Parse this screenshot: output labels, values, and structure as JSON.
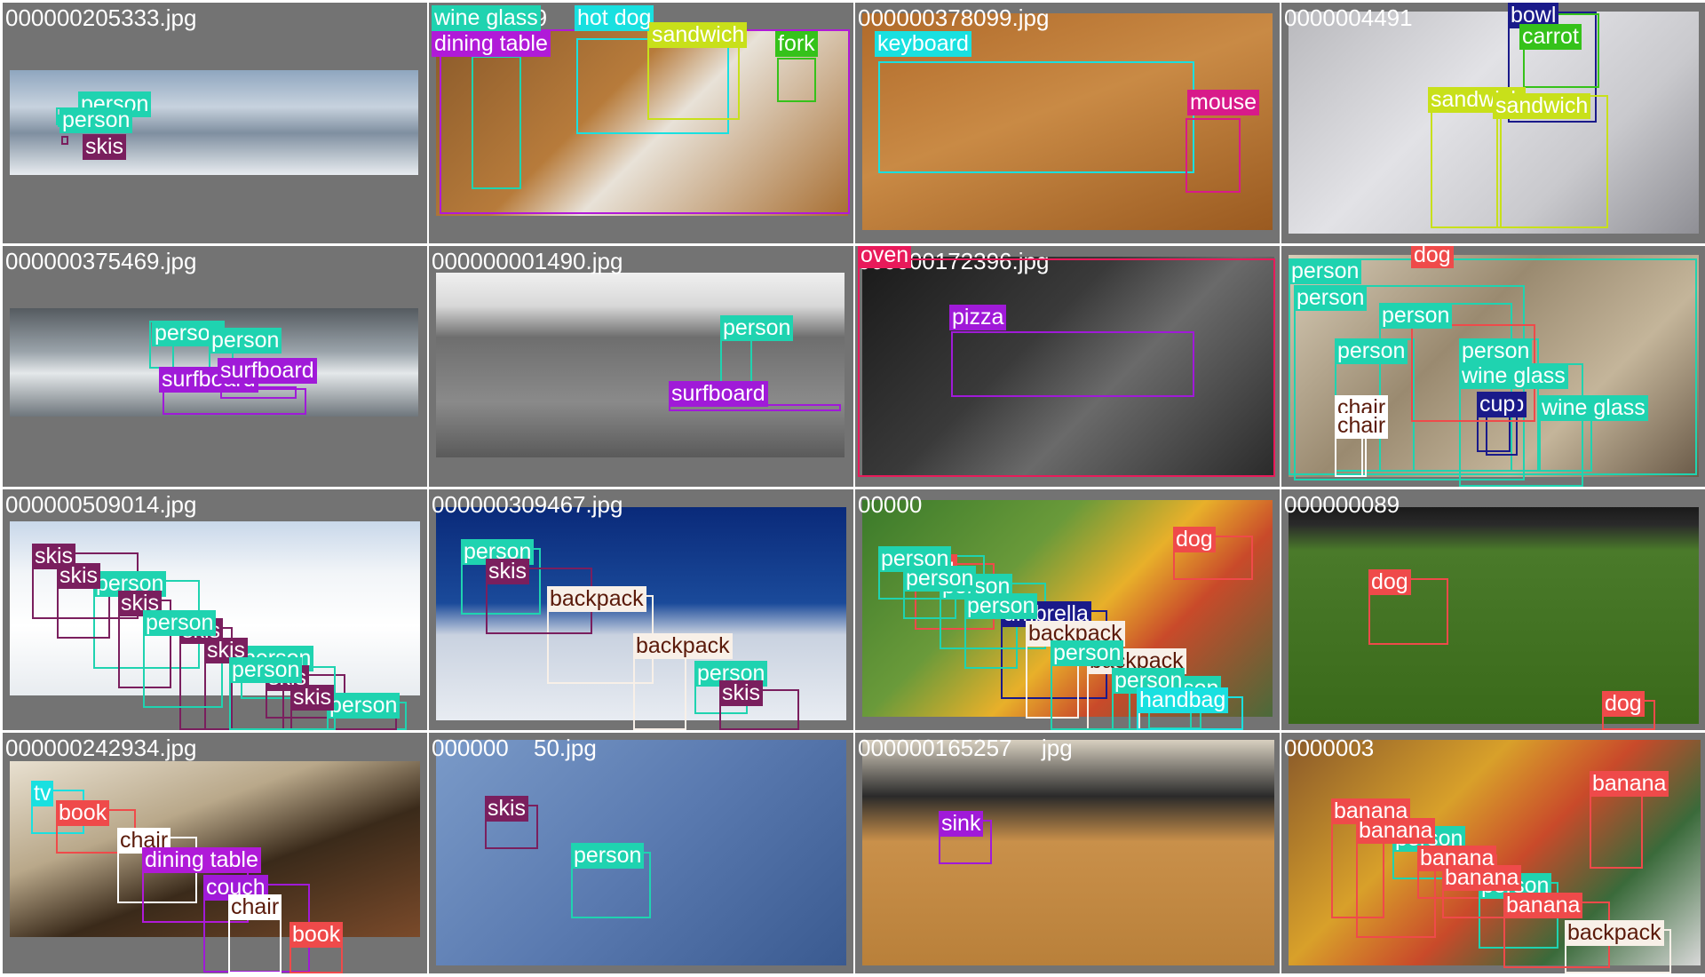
{
  "tiles": [
    {
      "filename": "000000205333.jpg",
      "photo_fill": "linear-gradient(180deg,#8fa6bf 0%,#c7d2de 35%,#7f8fa0 60%,#e8ecf0 100%)",
      "detections": [
        {
          "label": "person",
          "color": "#1fd3b0",
          "text_color": "#ffffff"
        },
        {
          "label": "person",
          "color": "#1fd3b0",
          "text_color": "#ffffff"
        },
        {
          "label": "skis",
          "color": "#7a1f5e",
          "text_color": "#ffffff"
        }
      ]
    },
    {
      "filename": "000000229",
      "photo_fill": "linear-gradient(135deg,#8a5a2a 0%,#b77b3b 40%,#e8e2d8 55%,#a86f33 100%)",
      "detections": [
        {
          "label": "wine glass",
          "color": "#1fd3b0",
          "text_color": "#ffffff"
        },
        {
          "label": "hot dog",
          "color": "#19e0e0",
          "text_color": "#ffffff"
        },
        {
          "label": "sandwich",
          "color": "#c8e01a",
          "text_color": "#ffffff"
        },
        {
          "label": "dining table",
          "color": "#b01ad8",
          "text_color": "#ffffff"
        },
        {
          "label": "fork",
          "color": "#35c21a",
          "text_color": "#ffffff"
        }
      ]
    },
    {
      "filename": "000000378099.jpg",
      "photo_fill": "linear-gradient(160deg,#b06a2a 0%,#c98a45 45%,#9a5a20 100%)",
      "detections": [
        {
          "label": "keyboard",
          "color": "#19e0e0",
          "text_color": "#ffffff"
        },
        {
          "label": "mouse",
          "color": "#d81a8a",
          "text_color": "#ffffff"
        }
      ]
    },
    {
      "filename": "0000004491",
      "photo_fill": "linear-gradient(135deg,#b9b9bd 0%,#e2e2e6 40%,#c9c9cd 70%,#8f8f95 100%)",
      "detections": [
        {
          "label": "bowl",
          "color": "#1a1a8a",
          "text_color": "#ffffff"
        },
        {
          "label": "carrot",
          "color": "#35c21a",
          "text_color": "#ffffff"
        },
        {
          "label": "sandwich",
          "color": "#c8e01a",
          "text_color": "#ffffff"
        },
        {
          "label": "sandwich",
          "color": "#c8e01a",
          "text_color": "#ffffff"
        }
      ]
    },
    {
      "filename": "000000375469.jpg",
      "photo_fill": "linear-gradient(180deg,#555b60 0%,#9aa3aa 40%,#e4e8ea 60%,#6e767c 100%)",
      "detections": [
        {
          "label": "person",
          "color": "#1fd3b0",
          "text_color": "#ffffff"
        },
        {
          "label": "person",
          "color": "#1fd3b0",
          "text_color": "#ffffff"
        },
        {
          "label": "surfboard",
          "color": "#a01ad8",
          "text_color": "#ffffff"
        },
        {
          "label": "surfboard",
          "color": "#a01ad8",
          "text_color": "#ffffff"
        }
      ]
    },
    {
      "filename": "000000001490.jpg",
      "photo_fill": "linear-gradient(180deg,#f0f0f0 0%,#d8d8d8 18%,#6e6e6e 35%,#8a8a8a 70%,#5a5a5a 100%)",
      "detections": [
        {
          "label": "person",
          "color": "#1fd3b0",
          "text_color": "#ffffff"
        },
        {
          "label": "surfboard",
          "color": "#a01ad8",
          "text_color": "#ffffff"
        }
      ]
    },
    {
      "filename": "000000172396.jpg",
      "photo_fill": "linear-gradient(135deg,#1a1a1a 0%,#3a3a3a 40%,#6a6a6a 60%,#2a2a2a 100%)",
      "detections": [
        {
          "label": "oven",
          "color": "#e81a5a",
          "text_color": "#ffffff"
        },
        {
          "label": "pizza",
          "color": "#a01ad8",
          "text_color": "#ffffff"
        }
      ]
    },
    {
      "filename": "",
      "photo_fill": "linear-gradient(135deg,#d8cdb8 0%,#9a8a70 40%,#c4b59a 70%,#6a5a48 100%)",
      "detections": [
        {
          "label": "person",
          "color": "#1fd3b0",
          "text_color": "#ffffff"
        },
        {
          "label": "person",
          "color": "#1fd3b0",
          "text_color": "#ffffff"
        },
        {
          "label": "person",
          "color": "#1fd3b0",
          "text_color": "#ffffff"
        },
        {
          "label": "person",
          "color": "#1fd3b0",
          "text_color": "#ffffff"
        },
        {
          "label": "person",
          "color": "#1fd3b0",
          "text_color": "#ffffff"
        },
        {
          "label": "wine glass",
          "color": "#1fd3b0",
          "text_color": "#ffffff"
        },
        {
          "label": "chair",
          "color": "#ffffff",
          "text_color": "#5a1a0a"
        },
        {
          "label": "chair",
          "color": "#ffffff",
          "text_color": "#5a1a0a"
        },
        {
          "label": "cup",
          "color": "#1a1a8a",
          "text_color": "#ffffff"
        },
        {
          "label": "cup",
          "color": "#1a1a8a",
          "text_color": "#ffffff"
        },
        {
          "label": "wine glass",
          "color": "#1fd3b0",
          "text_color": "#ffffff"
        },
        {
          "label": "dog",
          "color": "#ef4a4a",
          "text_color": "#ffffff"
        }
      ]
    },
    {
      "filename": "000000509014.jpg",
      "photo_fill": "linear-gradient(180deg,#c9d8ea 0%,#f2f5f8 30%,#ffffff 60%,#e8ecf0 100%)",
      "detections": [
        {
          "label": "person",
          "color": "#1fd3b0",
          "text_color": "#ffffff"
        },
        {
          "label": "person",
          "color": "#1fd3b0",
          "text_color": "#ffffff"
        },
        {
          "label": "person",
          "color": "#1fd3b0",
          "text_color": "#ffffff"
        },
        {
          "label": "skis",
          "color": "#7a1f5e",
          "text_color": "#ffffff"
        },
        {
          "label": "skis",
          "color": "#7a1f5e",
          "text_color": "#ffffff"
        },
        {
          "label": "skis",
          "color": "#7a1f5e",
          "text_color": "#ffffff"
        },
        {
          "label": "skis",
          "color": "#7a1f5e",
          "text_color": "#ffffff"
        },
        {
          "label": "skis",
          "color": "#7a1f5e",
          "text_color": "#ffffff"
        },
        {
          "label": "skis",
          "color": "#7a1f5e",
          "text_color": "#ffffff"
        },
        {
          "label": "skis",
          "color": "#7a1f5e",
          "text_color": "#ffffff"
        },
        {
          "label": "person",
          "color": "#1fd3b0",
          "text_color": "#ffffff"
        },
        {
          "label": "person",
          "color": "#1fd3b0",
          "text_color": "#ffffff"
        }
      ]
    },
    {
      "filename": "000000309467.jpg",
      "photo_fill": "linear-gradient(180deg,#0a2a7a 0%,#1a4a9a 45%,#c9d2e0 60%,#e8ecf2 100%)",
      "detections": [
        {
          "label": "person",
          "color": "#1fd3b0",
          "text_color": "#ffffff"
        },
        {
          "label": "person",
          "color": "#1fd3b0",
          "text_color": "#ffffff"
        },
        {
          "label": "backpack",
          "color": "#f8f0e8",
          "text_color": "#5a1a0a"
        },
        {
          "label": "backpack",
          "color": "#f8f0e8",
          "text_color": "#5a1a0a"
        },
        {
          "label": "skis",
          "color": "#7a1f5e",
          "text_color": "#ffffff"
        },
        {
          "label": "skis",
          "color": "#7a1f5e",
          "text_color": "#ffffff"
        }
      ]
    },
    {
      "filename": "00000",
      "photo_fill": "linear-gradient(135deg,#3a7a2a 0%,#6a9a3a 35%,#e8b02a 55%,#c94a2a 70%,#4a6a3a 100%)",
      "detections": [
        {
          "label": "person",
          "color": "#1fd3b0",
          "text_color": "#ffffff"
        },
        {
          "label": "dog",
          "color": "#ef4a4a",
          "text_color": "#ffffff"
        },
        {
          "label": "umbrella",
          "color": "#1a1a8a",
          "text_color": "#ffffff"
        },
        {
          "label": "backpack",
          "color": "#f8f0e8",
          "text_color": "#5a1a0a"
        },
        {
          "label": "dog",
          "color": "#ef4a4a",
          "text_color": "#ffffff"
        },
        {
          "label": "person",
          "color": "#1fd3b0",
          "text_color": "#ffffff"
        },
        {
          "label": "backpack",
          "color": "#f8f0e8",
          "text_color": "#5a1a0a"
        },
        {
          "label": "person",
          "color": "#1fd3b0",
          "text_color": "#ffffff"
        },
        {
          "label": "person",
          "color": "#1fd3b0",
          "text_color": "#ffffff"
        },
        {
          "label": "person",
          "color": "#1fd3b0",
          "text_color": "#ffffff"
        },
        {
          "label": "person",
          "color": "#1fd3b0",
          "text_color": "#ffffff"
        },
        {
          "label": "handbag",
          "color": "#19e0e0",
          "text_color": "#ffffff"
        },
        {
          "label": "person",
          "color": "#1fd3b0",
          "text_color": "#ffffff"
        }
      ]
    },
    {
      "filename": "000000089",
      "photo_fill": "linear-gradient(180deg,#1a1a1a 0%,#2a2a2a 8%,#4a7a2a 20%,#3a6a1a 100%)",
      "detections": [
        {
          "label": "dog",
          "color": "#ef4a4a",
          "text_color": "#ffffff"
        },
        {
          "label": "dog",
          "color": "#ef4a4a",
          "text_color": "#ffffff"
        }
      ]
    },
    {
      "filename": "000000242934.jpg",
      "photo_fill": "linear-gradient(160deg,#e8e0d0 0%,#b9a88a 35%,#3a2a1a 60%,#7a4a2a 100%)",
      "detections": [
        {
          "label": "tv",
          "color": "#19e0e0",
          "text_color": "#ffffff"
        },
        {
          "label": "chair",
          "color": "#ffffff",
          "text_color": "#5a1a0a"
        },
        {
          "label": "couch",
          "color": "#a01ad8",
          "text_color": "#ffffff"
        },
        {
          "label": "book",
          "color": "#ef4a4a",
          "text_color": "#ffffff"
        },
        {
          "label": "book",
          "color": "#ef4a4a",
          "text_color": "#ffffff"
        },
        {
          "label": "dining table",
          "color": "#b01ad8",
          "text_color": "#ffffff"
        },
        {
          "label": "chair",
          "color": "#ffffff",
          "text_color": "#5a1a0a"
        }
      ]
    },
    {
      "filename": "000000",
      "filename_tail": "50.jpg",
      "photo_fill": "linear-gradient(135deg,#7a9ac8 0%,#5a7ab0 50%,#3a5a90 100%)",
      "detections": [
        {
          "label": "skis",
          "color": "#7a1f5e",
          "text_color": "#ffffff"
        },
        {
          "label": "person",
          "color": "#1fd3b0",
          "text_color": "#ffffff"
        }
      ]
    },
    {
      "filename": "000000165257",
      "filename_tail": "jpg",
      "photo_fill": "linear-gradient(180deg,#d8d0c0 0%,#2a2a2a 25%,#c9904a 45%,#b9803a 100%)",
      "detections": [
        {
          "label": "sink",
          "color": "#a01ad8",
          "text_color": "#ffffff"
        }
      ]
    },
    {
      "filename": "0000003",
      "photo_fill": "linear-gradient(135deg,#8a5a2a 0%,#d8a02a 35%,#c94a2a 55%,#3a6a3a 75%,#d8d8d8 100%)",
      "detections": [
        {
          "label": "person",
          "color": "#1fd3b0",
          "text_color": "#ffffff"
        },
        {
          "label": "person",
          "color": "#1fd3b0",
          "text_color": "#ffffff"
        },
        {
          "label": "backpack",
          "color": "#f8f0e8",
          "text_color": "#5a1a0a"
        },
        {
          "label": "banana",
          "color": "#ef4a4a",
          "text_color": "#ffffff"
        },
        {
          "label": "banana",
          "color": "#ef4a4a",
          "text_color": "#ffffff"
        },
        {
          "label": "banana",
          "color": "#ef4a4a",
          "text_color": "#ffffff"
        },
        {
          "label": "banana",
          "color": "#ef4a4a",
          "text_color": "#ffffff"
        },
        {
          "label": "banana",
          "color": "#ef4a4a",
          "text_color": "#ffffff"
        },
        {
          "label": "banana",
          "color": "#ef4a4a",
          "text_color": "#ffffff"
        }
      ]
    }
  ]
}
